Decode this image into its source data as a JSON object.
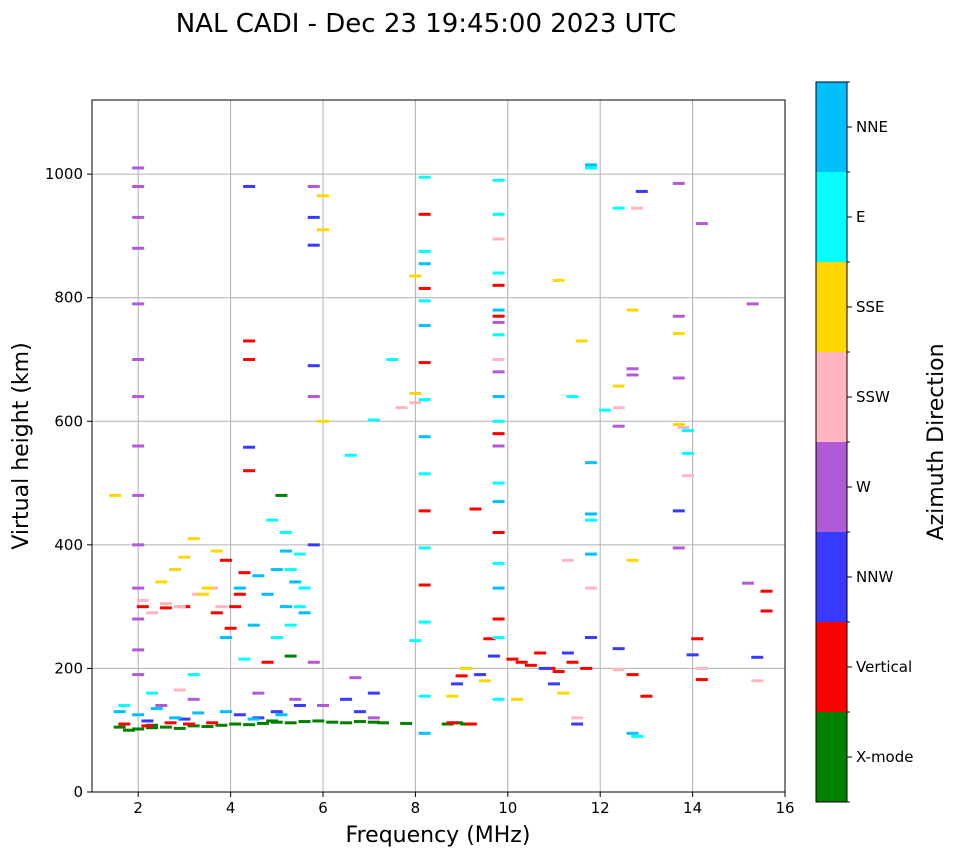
{
  "chart_data": {
    "type": "scatter",
    "title": "NAL CADI - Dec 23 19:45:00 2023 UTC",
    "xlabel": "Frequency (MHz)",
    "ylabel": "Virtual height (km)",
    "xlim": [
      1,
      16
    ],
    "ylim": [
      0,
      1120
    ],
    "xticks": [
      "2",
      "4",
      "6",
      "8",
      "10",
      "12",
      "14",
      "16"
    ],
    "yticks": [
      "0",
      "200",
      "400",
      "600",
      "800",
      "1000"
    ],
    "grid": true,
    "colorbar": {
      "label": "Azimuth Direction",
      "categories": [
        {
          "name": "X-mode",
          "color": "#008000"
        },
        {
          "name": "Vertical",
          "color": "#ff0000"
        },
        {
          "name": "NNW",
          "color": "#3a3aff"
        },
        {
          "name": "W",
          "color": "#b05ad6"
        },
        {
          "name": "SSW",
          "color": "#ffb6c1"
        },
        {
          "name": "SSE",
          "color": "#ffd700"
        },
        {
          "name": "E",
          "color": "#00ffff"
        },
        {
          "name": "NNE",
          "color": "#00bfff"
        }
      ]
    },
    "series": [
      {
        "name": "X-mode",
        "points": [
          [
            1.6,
            105
          ],
          [
            1.8,
            100
          ],
          [
            2.0,
            102
          ],
          [
            2.3,
            104
          ],
          [
            2.6,
            105
          ],
          [
            2.9,
            103
          ],
          [
            3.2,
            107
          ],
          [
            3.5,
            106
          ],
          [
            3.8,
            108
          ],
          [
            4.1,
            110
          ],
          [
            4.4,
            109
          ],
          [
            4.7,
            111
          ],
          [
            5.0,
            113
          ],
          [
            5.3,
            112
          ],
          [
            5.6,
            114
          ],
          [
            5.9,
            115
          ],
          [
            6.2,
            113
          ],
          [
            6.5,
            112
          ],
          [
            6.8,
            114
          ],
          [
            7.1,
            113
          ],
          [
            7.3,
            112
          ],
          [
            7.8,
            111
          ],
          [
            8.7,
            110
          ],
          [
            8.9,
            112
          ],
          [
            9.1,
            110
          ],
          [
            5.1,
            480
          ],
          [
            5.3,
            220
          ],
          [
            2.3,
            108
          ],
          [
            4.9,
            115
          ]
        ]
      },
      {
        "name": "Vertical",
        "points": [
          [
            1.7,
            110
          ],
          [
            2.2,
            107
          ],
          [
            2.7,
            112
          ],
          [
            3.1,
            110
          ],
          [
            3.6,
            112
          ],
          [
            4.0,
            265
          ],
          [
            4.2,
            320
          ],
          [
            4.3,
            355
          ],
          [
            4.4,
            730
          ],
          [
            4.4,
            700
          ],
          [
            4.4,
            520
          ],
          [
            3.9,
            375
          ],
          [
            3.7,
            290
          ],
          [
            4.1,
            300
          ],
          [
            3.0,
            300
          ],
          [
            2.6,
            298
          ],
          [
            2.1,
            300
          ],
          [
            8.2,
            935
          ],
          [
            8.2,
            815
          ],
          [
            8.2,
            695
          ],
          [
            8.2,
            455
          ],
          [
            8.2,
            335
          ],
          [
            8.8,
            112
          ],
          [
            9.0,
            188
          ],
          [
            9.2,
            110
          ],
          [
            9.6,
            248
          ],
          [
            9.3,
            458
          ],
          [
            9.8,
            820
          ],
          [
            9.8,
            770
          ],
          [
            9.8,
            580
          ],
          [
            9.8,
            420
          ],
          [
            9.8,
            280
          ],
          [
            10.1,
            215
          ],
          [
            10.3,
            210
          ],
          [
            10.5,
            205
          ],
          [
            10.7,
            225
          ],
          [
            10.9,
            200
          ],
          [
            11.1,
            195
          ],
          [
            11.4,
            210
          ],
          [
            11.7,
            200
          ],
          [
            12.7,
            190
          ],
          [
            13.0,
            155
          ],
          [
            14.1,
            248
          ],
          [
            14.2,
            182
          ],
          [
            15.6,
            325
          ],
          [
            15.6,
            293
          ],
          [
            4.8,
            210
          ]
        ]
      },
      {
        "name": "NNW",
        "points": [
          [
            2.2,
            115
          ],
          [
            3.0,
            118
          ],
          [
            4.2,
            125
          ],
          [
            4.6,
            120
          ],
          [
            5.0,
            130
          ],
          [
            5.5,
            140
          ],
          [
            6.5,
            150
          ],
          [
            6.8,
            130
          ],
          [
            7.1,
            160
          ],
          [
            4.4,
            558
          ],
          [
            4.4,
            980
          ],
          [
            5.8,
            930
          ],
          [
            5.8,
            885
          ],
          [
            5.8,
            690
          ],
          [
            5.8,
            400
          ],
          [
            8.9,
            175
          ],
          [
            9.4,
            190
          ],
          [
            9.7,
            220
          ],
          [
            10.8,
            200
          ],
          [
            11.0,
            175
          ],
          [
            11.3,
            225
          ],
          [
            11.5,
            110
          ],
          [
            11.8,
            250
          ],
          [
            12.4,
            232
          ],
          [
            12.9,
            972
          ],
          [
            13.7,
            455
          ],
          [
            14.0,
            222
          ],
          [
            15.4,
            218
          ]
        ]
      },
      {
        "name": "W",
        "points": [
          [
            2.0,
            1010
          ],
          [
            2.0,
            980
          ],
          [
            2.0,
            930
          ],
          [
            2.0,
            880
          ],
          [
            2.0,
            790
          ],
          [
            2.0,
            700
          ],
          [
            2.0,
            640
          ],
          [
            2.0,
            560
          ],
          [
            2.0,
            480
          ],
          [
            2.0,
            400
          ],
          [
            2.0,
            330
          ],
          [
            2.0,
            280
          ],
          [
            2.0,
            230
          ],
          [
            2.0,
            190
          ],
          [
            2.5,
            140
          ],
          [
            3.2,
            150
          ],
          [
            4.6,
            160
          ],
          [
            5.4,
            150
          ],
          [
            5.8,
            980
          ],
          [
            5.8,
            640
          ],
          [
            5.8,
            210
          ],
          [
            6.0,
            140
          ],
          [
            6.7,
            185
          ],
          [
            7.1,
            120
          ],
          [
            9.8,
            760
          ],
          [
            9.8,
            680
          ],
          [
            9.8,
            560
          ],
          [
            12.4,
            592
          ],
          [
            12.7,
            685
          ],
          [
            12.7,
            675
          ],
          [
            13.7,
            985
          ],
          [
            13.7,
            770
          ],
          [
            13.7,
            670
          ],
          [
            13.7,
            395
          ],
          [
            14.2,
            920
          ],
          [
            15.3,
            790
          ],
          [
            15.2,
            338
          ]
        ]
      },
      {
        "name": "SSW",
        "points": [
          [
            2.1,
            310
          ],
          [
            2.3,
            290
          ],
          [
            2.6,
            305
          ],
          [
            2.9,
            300
          ],
          [
            3.3,
            320
          ],
          [
            3.6,
            330
          ],
          [
            3.8,
            300
          ],
          [
            2.9,
            165
          ],
          [
            8.0,
            630
          ],
          [
            9.8,
            895
          ],
          [
            9.8,
            740
          ],
          [
            9.8,
            700
          ],
          [
            11.3,
            375
          ],
          [
            11.5,
            120
          ],
          [
            11.8,
            330
          ],
          [
            12.4,
            622
          ],
          [
            12.4,
            198
          ],
          [
            12.8,
            945
          ],
          [
            13.8,
            590
          ],
          [
            13.9,
            512
          ],
          [
            14.2,
            200
          ],
          [
            15.4,
            180
          ],
          [
            7.7,
            622
          ]
        ]
      },
      {
        "name": "SSE",
        "points": [
          [
            1.5,
            480
          ],
          [
            2.5,
            340
          ],
          [
            2.8,
            360
          ],
          [
            3.0,
            380
          ],
          [
            3.2,
            410
          ],
          [
            3.5,
            330
          ],
          [
            3.7,
            390
          ],
          [
            3.4,
            320
          ],
          [
            6.0,
            965
          ],
          [
            6.0,
            910
          ],
          [
            6.0,
            600
          ],
          [
            8.0,
            645
          ],
          [
            8.0,
            835
          ],
          [
            8.8,
            155
          ],
          [
            9.1,
            200
          ],
          [
            9.5,
            180
          ],
          [
            10.2,
            150
          ],
          [
            11.1,
            828
          ],
          [
            11.2,
            160
          ],
          [
            11.6,
            730
          ],
          [
            12.4,
            657
          ],
          [
            12.7,
            780
          ],
          [
            12.7,
            375
          ],
          [
            13.7,
            742
          ],
          [
            13.7,
            595
          ]
        ]
      },
      {
        "name": "E",
        "points": [
          [
            1.7,
            140
          ],
          [
            2.3,
            160
          ],
          [
            3.2,
            190
          ],
          [
            4.3,
            215
          ],
          [
            5.0,
            250
          ],
          [
            5.3,
            270
          ],
          [
            5.5,
            300
          ],
          [
            5.6,
            330
          ],
          [
            5.3,
            360
          ],
          [
            5.5,
            385
          ],
          [
            5.2,
            420
          ],
          [
            4.9,
            440
          ],
          [
            6.6,
            545
          ],
          [
            7.1,
            602
          ],
          [
            7.5,
            700
          ],
          [
            8.2,
            995
          ],
          [
            8.2,
            875
          ],
          [
            8.2,
            795
          ],
          [
            8.2,
            635
          ],
          [
            8.2,
            515
          ],
          [
            8.2,
            395
          ],
          [
            8.2,
            275
          ],
          [
            8.0,
            245
          ],
          [
            8.2,
            155
          ],
          [
            9.8,
            990
          ],
          [
            9.8,
            935
          ],
          [
            9.8,
            840
          ],
          [
            9.8,
            740
          ],
          [
            9.8,
            600
          ],
          [
            9.8,
            500
          ],
          [
            9.8,
            370
          ],
          [
            9.8,
            250
          ],
          [
            9.8,
            150
          ],
          [
            11.4,
            640
          ],
          [
            11.8,
            440
          ],
          [
            12.1,
            618
          ],
          [
            12.4,
            945
          ],
          [
            12.8,
            90
          ],
          [
            13.9,
            585
          ],
          [
            13.9,
            548
          ],
          [
            11.8,
            1010
          ]
        ]
      },
      {
        "name": "NNE",
        "points": [
          [
            1.6,
            130
          ],
          [
            2.0,
            125
          ],
          [
            2.4,
            135
          ],
          [
            2.8,
            120
          ],
          [
            3.3,
            128
          ],
          [
            3.9,
            130
          ],
          [
            4.5,
            118
          ],
          [
            5.1,
            125
          ],
          [
            3.9,
            250
          ],
          [
            4.5,
            270
          ],
          [
            4.8,
            320
          ],
          [
            5.2,
            300
          ],
          [
            5.4,
            340
          ],
          [
            5.6,
            290
          ],
          [
            5.2,
            390
          ],
          [
            5.0,
            360
          ],
          [
            4.6,
            350
          ],
          [
            4.2,
            330
          ],
          [
            8.2,
            855
          ],
          [
            8.2,
            755
          ],
          [
            8.2,
            575
          ],
          [
            8.2,
            95
          ],
          [
            9.8,
            780
          ],
          [
            9.8,
            640
          ],
          [
            9.8,
            470
          ],
          [
            9.8,
            330
          ],
          [
            11.8,
            1015
          ],
          [
            11.8,
            533
          ],
          [
            11.8,
            450
          ],
          [
            11.8,
            385
          ],
          [
            12.7,
            95
          ]
        ]
      }
    ]
  }
}
